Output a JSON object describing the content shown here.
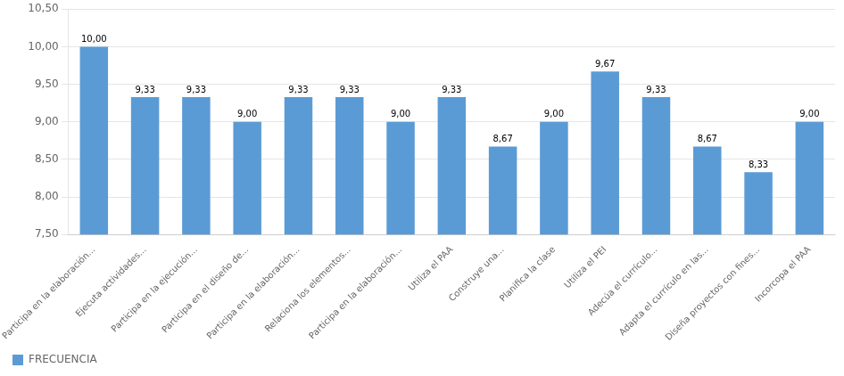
{
  "chart_data": {
    "type": "bar",
    "categories": [
      "Participa en la elaboración...",
      "Ejecuta actividades...",
      "Participa en la ejecución...",
      "Participa en el diseño de...",
      "Participa en la elaboración...",
      "Relaciona los elementos...",
      "Participa en la elaboración...",
      "Utiliza el PAA",
      "Construye una...",
      "Planifica la clase",
      "Utiliza el PEI",
      "Adecúa el currículo...",
      "Adapta el currículo en las...",
      "Diseña proyectos con fines...",
      "Incorcopa el PAA"
    ],
    "series": [
      {
        "name": "FRECUENCIA",
        "color": "#5B9BD5",
        "values": [
          10.0,
          9.33,
          9.33,
          9.0,
          9.33,
          9.33,
          9.0,
          9.33,
          8.67,
          9.0,
          9.67,
          9.33,
          8.67,
          8.33,
          9.0
        ],
        "value_labels": [
          "10,00",
          "9,33",
          "9,33",
          "9,00",
          "9,33",
          "9,33",
          "9,00",
          "9,33",
          "8,67",
          "9,00",
          "9,67",
          "9,33",
          "8,67",
          "8,33",
          "9,00"
        ]
      }
    ],
    "ylim": [
      7.5,
      10.5
    ],
    "yticks": [
      {
        "value": 7.5,
        "label": "7,50"
      },
      {
        "value": 8.0,
        "label": "8,00"
      },
      {
        "value": 8.5,
        "label": "8,50"
      },
      {
        "value": 9.0,
        "label": "9,00"
      },
      {
        "value": 9.5,
        "label": "9,50"
      },
      {
        "value": 10.0,
        "label": "10,00"
      },
      {
        "value": 10.5,
        "label": "10,50"
      }
    ],
    "grid": true,
    "legend": "lower left",
    "data_labels": true
  }
}
